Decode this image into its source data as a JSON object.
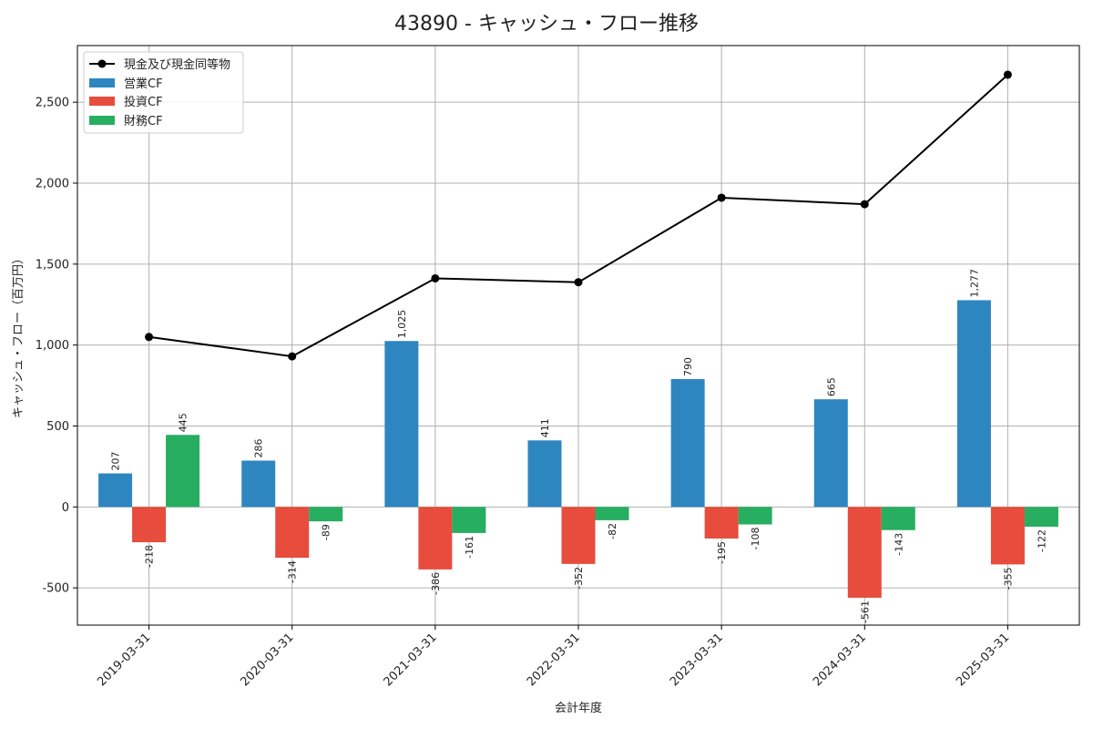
{
  "chart_data": {
    "type": "bar",
    "title": "43890 - キャッシュ・フロー推移",
    "xlabel": "会計年度",
    "ylabel": "キャッシュ・フロー（百万円）",
    "categories": [
      "2019-03-31",
      "2020-03-31",
      "2021-03-31",
      "2022-03-31",
      "2023-03-31",
      "2024-03-31",
      "2025-03-31"
    ],
    "ylim": [
      -730,
      2850
    ],
    "yticks": [
      -500,
      0,
      500,
      1000,
      1500,
      2000,
      2500
    ],
    "ytick_labels": [
      "-500",
      "0",
      "500",
      "1,000",
      "1,500",
      "2,000",
      "2,500"
    ],
    "grid": true,
    "legend_position": "top-left",
    "series": [
      {
        "name": "営業CF",
        "kind": "bar",
        "color": "#2e86c1",
        "values": [
          207,
          286,
          1025,
          411,
          790,
          665,
          1277
        ],
        "labels": [
          "207",
          "286",
          "1,025",
          "411",
          "790",
          "665",
          "1,277"
        ]
      },
      {
        "name": "投資CF",
        "kind": "bar",
        "color": "#e74c3c",
        "values": [
          -218,
          -314,
          -386,
          -352,
          -195,
          -561,
          -355
        ],
        "labels": [
          "-218",
          "-314",
          "-386",
          "-352",
          "-195",
          "-561",
          "-355"
        ]
      },
      {
        "name": "財務CF",
        "kind": "bar",
        "color": "#27ae60",
        "values": [
          445,
          -89,
          -161,
          -82,
          -108,
          -143,
          -122
        ],
        "labels": [
          "445",
          "-89",
          "-161",
          "-82",
          "-108",
          "-143",
          "-122"
        ]
      }
    ],
    "line": {
      "name": "現金及び現金同等物",
      "color": "#000000",
      "values": [
        1050,
        930,
        1412,
        1388,
        1910,
        1870,
        2670
      ]
    }
  }
}
